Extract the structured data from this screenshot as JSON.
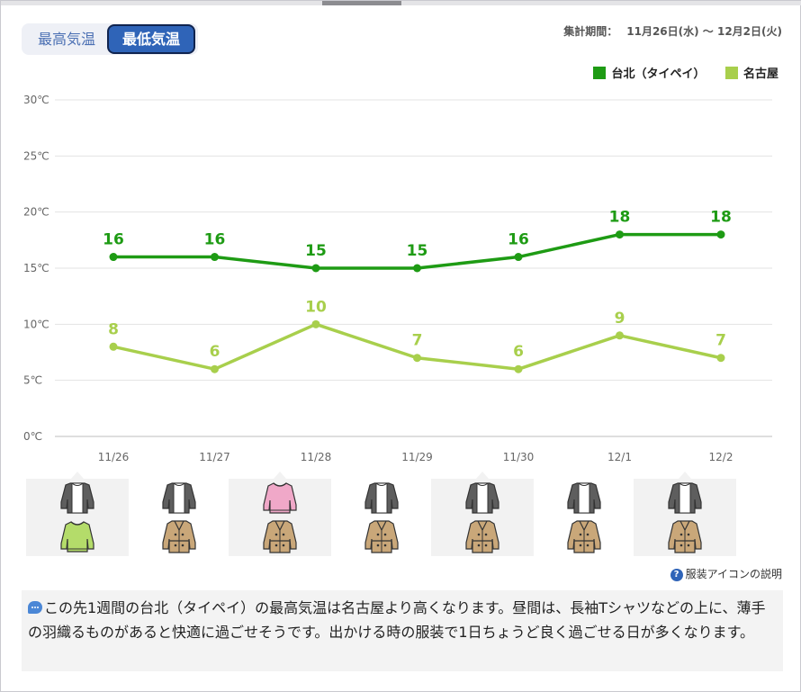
{
  "toggle": {
    "high_label": "最高気温",
    "low_label": "最低気温",
    "selected": "low"
  },
  "period": {
    "label": "集計期間：",
    "range": "11月26日(水) ～ 12月2日(火)"
  },
  "chart_data": {
    "type": "line",
    "title": "",
    "xlabel": "",
    "ylabel": "",
    "categories": [
      "11/26",
      "11/27",
      "11/28",
      "11/29",
      "11/30",
      "12/1",
      "12/2"
    ],
    "yticks": [
      "0℃",
      "5℃",
      "10℃",
      "15℃",
      "20℃",
      "25℃",
      "30℃"
    ],
    "ylim": [
      0,
      30
    ],
    "grid": true,
    "legend_position": "top-right",
    "data_labels": true,
    "series": [
      {
        "name": "台北（タイペイ）",
        "color": "#1e9b14",
        "values": [
          16,
          16,
          15,
          15,
          16,
          18,
          18
        ]
      },
      {
        "name": "名古屋",
        "color": "#a8cf4c",
        "values": [
          8,
          6,
          10,
          7,
          6,
          9,
          7
        ]
      }
    ]
  },
  "clothing": {
    "taipei": [
      "cardigan",
      "cardigan",
      "sweater",
      "cardigan",
      "cardigan",
      "cardigan",
      "cardigan"
    ],
    "nagoya": [
      "sweater",
      "trench-coat",
      "trench-coat",
      "trench-coat",
      "trench-coat",
      "trench-coat",
      "trench-coat"
    ],
    "colors": {
      "cardigan": "#5e5e5e",
      "sweater_taipei": "#f0a8c8",
      "sweater_nagoya": "#b4dc6a",
      "trench-coat": "#c9a779"
    }
  },
  "help_link": "服装アイコンの説明",
  "comment": "この先1週間の台北（タイペイ）の最高気温は名古屋より高くなります。昼間は、長袖Tシャツなどの上に、薄手の羽織るものがあると快適に過ごせそうです。出かける時の服装で1日ちょうど良く過ごせる日が多くなります。"
}
